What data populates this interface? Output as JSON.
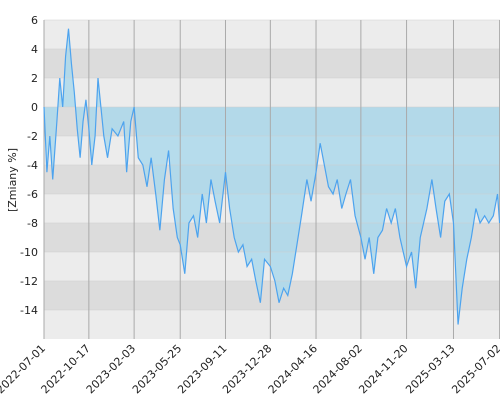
{
  "chart_data": {
    "type": "area-line",
    "ylabel": "[Zmiany %]",
    "x": [
      "2022-07-01",
      "2022-07-08",
      "2022-07-15",
      "2022-07-22",
      "2022-08-01",
      "2022-08-08",
      "2022-08-15",
      "2022-08-22",
      "2022-08-29",
      "2022-09-05",
      "2022-09-12",
      "2022-09-19",
      "2022-09-26",
      "2022-10-03",
      "2022-10-10",
      "2022-10-17",
      "2022-10-24",
      "2022-11-01",
      "2022-11-08",
      "2022-11-15",
      "2022-11-22",
      "2022-12-01",
      "2022-12-12",
      "2022-12-26",
      "2023-01-09",
      "2023-01-16",
      "2023-01-26",
      "2023-02-03",
      "2023-02-13",
      "2023-02-24",
      "2023-03-06",
      "2023-03-16",
      "2023-03-27",
      "2023-04-06",
      "2023-04-17",
      "2023-04-27",
      "2023-05-08",
      "2023-05-18",
      "2023-05-25",
      "2023-06-05",
      "2023-06-15",
      "2023-06-26",
      "2023-07-06",
      "2023-07-17",
      "2023-07-27",
      "2023-08-07",
      "2023-08-17",
      "2023-08-28",
      "2023-09-11",
      "2023-09-21",
      "2023-10-02",
      "2023-10-12",
      "2023-10-23",
      "2023-11-02",
      "2023-11-13",
      "2023-11-23",
      "2023-12-04",
      "2023-12-14",
      "2023-12-28",
      "2024-01-08",
      "2024-01-18",
      "2024-01-29",
      "2024-02-08",
      "2024-02-19",
      "2024-03-01",
      "2024-03-12",
      "2024-03-25",
      "2024-04-04",
      "2024-04-16",
      "2024-04-26",
      "2024-05-06",
      "2024-05-16",
      "2024-05-27",
      "2024-06-06",
      "2024-06-17",
      "2024-06-27",
      "2024-07-08",
      "2024-07-19",
      "2024-08-02",
      "2024-08-12",
      "2024-08-22",
      "2024-09-02",
      "2024-09-12",
      "2024-09-23",
      "2024-10-03",
      "2024-10-14",
      "2024-10-24",
      "2024-11-04",
      "2024-11-20",
      "2024-12-02",
      "2024-12-12",
      "2024-12-23",
      "2025-01-08",
      "2025-01-20",
      "2025-01-30",
      "2025-02-10",
      "2025-02-20",
      "2025-03-03",
      "2025-03-13",
      "2025-03-24",
      "2025-04-03",
      "2025-04-14",
      "2025-04-25",
      "2025-05-06",
      "2025-05-16",
      "2025-05-27",
      "2025-06-06",
      "2025-06-17",
      "2025-06-27",
      "2025-07-02"
    ],
    "values": [
      0,
      -4.5,
      -2,
      -5,
      -1,
      2,
      0,
      3.5,
      5.4,
      3,
      1,
      -1.5,
      -3.5,
      -1,
      0.5,
      -1.5,
      -4,
      -2,
      2,
      0,
      -2,
      -3.5,
      -1.5,
      -2,
      -1,
      -4.5,
      -1,
      0,
      -3.5,
      -4,
      -5.5,
      -3.5,
      -6,
      -8.5,
      -5,
      -3,
      -7,
      -9,
      -9.5,
      -11.5,
      -8,
      -7.5,
      -9,
      -6,
      -8,
      -5,
      -6.5,
      -8,
      -4.5,
      -7,
      -9,
      -10,
      -9.5,
      -11,
      -10.5,
      -12,
      -13.5,
      -10.5,
      -11,
      -12,
      -13.5,
      -12.5,
      -13,
      -11.5,
      -9.5,
      -7.5,
      -5,
      -6.5,
      -4.5,
      -2.5,
      -4,
      -5.5,
      -6,
      -5,
      -7,
      -6,
      -5,
      -7.5,
      -9,
      -10.5,
      -9,
      -11.5,
      -9,
      -8.5,
      -7,
      -8,
      -7,
      -9,
      -11,
      -10,
      -12.5,
      -9,
      -7,
      -5,
      -7,
      -9,
      -6.5,
      -6,
      -8,
      -15,
      -12.5,
      -10.5,
      -9,
      -7,
      -8,
      -7.5,
      -8,
      -7.5,
      -6,
      -8
    ],
    "color": "#4da3ee",
    "area_color": "#a9d8ec",
    "grid": true,
    "xlim": [
      "2022-07-01",
      "2025-07-03"
    ],
    "xticks": [
      "2022-07-01",
      "2022-10-17",
      "2023-02-03",
      "2023-05-25",
      "2023-09-11",
      "2023-12-28",
      "2024-04-16",
      "2024-08-02",
      "2024-11-20",
      "2025-03-13",
      "2025-07-02"
    ],
    "ylim": [
      -16,
      6
    ],
    "yticks": [
      6,
      4,
      2,
      0,
      -2,
      -4,
      -6,
      -8,
      -10,
      -12,
      -14
    ]
  }
}
